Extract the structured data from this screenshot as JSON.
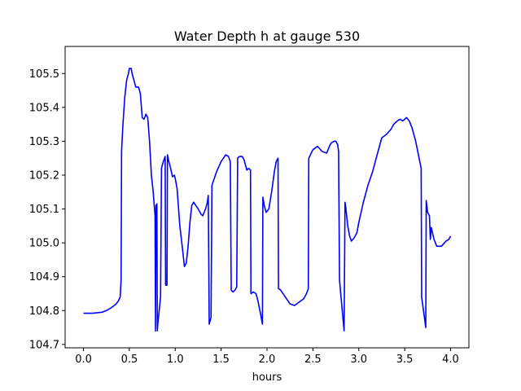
{
  "chart_data": {
    "type": "line",
    "title": "Water Depth h at gauge 530",
    "xlabel": "hours",
    "ylabel": "",
    "xlim": [
      -0.2,
      4.2
    ],
    "ylim": [
      104.69,
      105.58
    ],
    "xticks": [
      0.0,
      0.5,
      1.0,
      1.5,
      2.0,
      2.5,
      3.0,
      3.5,
      4.0
    ],
    "xtick_labels": [
      "0.0",
      "0.5",
      "1.0",
      "1.5",
      "2.0",
      "2.5",
      "3.0",
      "3.5",
      "4.0"
    ],
    "yticks": [
      104.7,
      104.8,
      104.9,
      105.0,
      105.1,
      105.2,
      105.3,
      105.4,
      105.5
    ],
    "ytick_labels": [
      "104.7",
      "104.8",
      "104.9",
      "105.0",
      "105.1",
      "105.2",
      "105.3",
      "105.4",
      "105.5"
    ],
    "grid": false,
    "series": [
      {
        "color": "#0000ff",
        "points": [
          [
            0.0,
            104.792
          ],
          [
            0.1,
            104.792
          ],
          [
            0.2,
            104.795
          ],
          [
            0.25,
            104.8
          ],
          [
            0.3,
            104.808
          ],
          [
            0.35,
            104.818
          ],
          [
            0.38,
            104.828
          ],
          [
            0.4,
            104.84
          ],
          [
            0.41,
            104.89
          ],
          [
            0.415,
            105.27
          ],
          [
            0.43,
            105.35
          ],
          [
            0.45,
            105.43
          ],
          [
            0.47,
            105.48
          ],
          [
            0.49,
            105.5
          ],
          [
            0.5,
            105.515
          ],
          [
            0.52,
            105.515
          ],
          [
            0.53,
            105.5
          ],
          [
            0.55,
            105.48
          ],
          [
            0.57,
            105.46
          ],
          [
            0.6,
            105.46
          ],
          [
            0.62,
            105.44
          ],
          [
            0.64,
            105.37
          ],
          [
            0.66,
            105.365
          ],
          [
            0.68,
            105.38
          ],
          [
            0.7,
            105.37
          ],
          [
            0.72,
            105.3
          ],
          [
            0.74,
            105.2
          ],
          [
            0.76,
            105.15
          ],
          [
            0.78,
            105.08
          ],
          [
            0.785,
            104.74
          ],
          [
            0.79,
            105.11
          ],
          [
            0.8,
            105.115
          ],
          [
            0.805,
            104.74
          ],
          [
            0.81,
            104.76
          ],
          [
            0.84,
            104.84
          ],
          [
            0.85,
            105.22
          ],
          [
            0.87,
            105.24
          ],
          [
            0.89,
            105.255
          ],
          [
            0.895,
            104.875
          ],
          [
            0.91,
            104.875
          ],
          [
            0.915,
            105.26
          ],
          [
            0.93,
            105.24
          ],
          [
            0.95,
            105.22
          ],
          [
            0.97,
            105.195
          ],
          [
            0.99,
            105.2
          ],
          [
            1.0,
            105.19
          ],
          [
            1.02,
            105.16
          ],
          [
            1.05,
            105.05
          ],
          [
            1.08,
            104.98
          ],
          [
            1.1,
            104.93
          ],
          [
            1.12,
            104.94
          ],
          [
            1.14,
            104.99
          ],
          [
            1.16,
            105.06
          ],
          [
            1.18,
            105.11
          ],
          [
            1.2,
            105.12
          ],
          [
            1.25,
            105.1
          ],
          [
            1.28,
            105.085
          ],
          [
            1.3,
            105.08
          ],
          [
            1.33,
            105.1
          ],
          [
            1.35,
            105.12
          ],
          [
            1.36,
            105.14
          ],
          [
            1.37,
            104.76
          ],
          [
            1.39,
            104.78
          ],
          [
            1.4,
            105.17
          ],
          [
            1.45,
            105.21
          ],
          [
            1.5,
            105.24
          ],
          [
            1.55,
            105.26
          ],
          [
            1.58,
            105.255
          ],
          [
            1.6,
            105.24
          ],
          [
            1.61,
            104.86
          ],
          [
            1.63,
            104.855
          ],
          [
            1.65,
            104.86
          ],
          [
            1.67,
            104.87
          ],
          [
            1.68,
            105.25
          ],
          [
            1.7,
            105.255
          ],
          [
            1.73,
            105.255
          ],
          [
            1.75,
            105.245
          ],
          [
            1.78,
            105.215
          ],
          [
            1.8,
            105.22
          ],
          [
            1.82,
            105.215
          ],
          [
            1.825,
            104.85
          ],
          [
            1.85,
            104.855
          ],
          [
            1.88,
            104.85
          ],
          [
            1.9,
            104.83
          ],
          [
            1.93,
            104.79
          ],
          [
            1.95,
            104.76
          ],
          [
            1.955,
            105.135
          ],
          [
            1.97,
            105.11
          ],
          [
            1.99,
            105.09
          ],
          [
            2.02,
            105.1
          ],
          [
            2.05,
            105.15
          ],
          [
            2.08,
            105.21
          ],
          [
            2.1,
            105.24
          ],
          [
            2.12,
            105.25
          ],
          [
            2.125,
            104.865
          ],
          [
            2.15,
            104.86
          ],
          [
            2.2,
            104.84
          ],
          [
            2.25,
            104.82
          ],
          [
            2.3,
            104.815
          ],
          [
            2.35,
            104.825
          ],
          [
            2.4,
            104.835
          ],
          [
            2.43,
            104.85
          ],
          [
            2.45,
            104.865
          ],
          [
            2.455,
            105.25
          ],
          [
            2.5,
            105.275
          ],
          [
            2.55,
            105.285
          ],
          [
            2.6,
            105.27
          ],
          [
            2.65,
            105.265
          ],
          [
            2.68,
            105.285
          ],
          [
            2.7,
            105.295
          ],
          [
            2.73,
            105.3
          ],
          [
            2.75,
            105.3
          ],
          [
            2.77,
            105.29
          ],
          [
            2.78,
            105.27
          ],
          [
            2.79,
            104.89
          ],
          [
            2.82,
            104.8
          ],
          [
            2.84,
            104.74
          ],
          [
            2.85,
            105.12
          ],
          [
            2.86,
            105.1
          ],
          [
            2.88,
            105.05
          ],
          [
            2.9,
            105.02
          ],
          [
            2.92,
            105.005
          ],
          [
            2.95,
            105.015
          ],
          [
            2.98,
            105.03
          ],
          [
            3.0,
            105.06
          ],
          [
            3.05,
            105.12
          ],
          [
            3.1,
            105.17
          ],
          [
            3.15,
            105.21
          ],
          [
            3.2,
            105.26
          ],
          [
            3.25,
            105.31
          ],
          [
            3.3,
            105.32
          ],
          [
            3.35,
            105.335
          ],
          [
            3.38,
            105.35
          ],
          [
            3.42,
            105.36
          ],
          [
            3.45,
            105.365
          ],
          [
            3.48,
            105.36
          ],
          [
            3.52,
            105.37
          ],
          [
            3.55,
            105.36
          ],
          [
            3.58,
            105.34
          ],
          [
            3.62,
            105.3
          ],
          [
            3.65,
            105.26
          ],
          [
            3.68,
            105.22
          ],
          [
            3.685,
            104.84
          ],
          [
            3.71,
            104.79
          ],
          [
            3.73,
            104.75
          ],
          [
            3.735,
            105.125
          ],
          [
            3.75,
            105.09
          ],
          [
            3.77,
            105.08
          ],
          [
            3.78,
            105.01
          ],
          [
            3.79,
            105.045
          ],
          [
            3.82,
            105.01
          ],
          [
            3.85,
            104.99
          ],
          [
            3.9,
            104.99
          ],
          [
            3.95,
            105.005
          ],
          [
            3.98,
            105.01
          ],
          [
            4.0,
            105.02
          ]
        ]
      }
    ]
  }
}
